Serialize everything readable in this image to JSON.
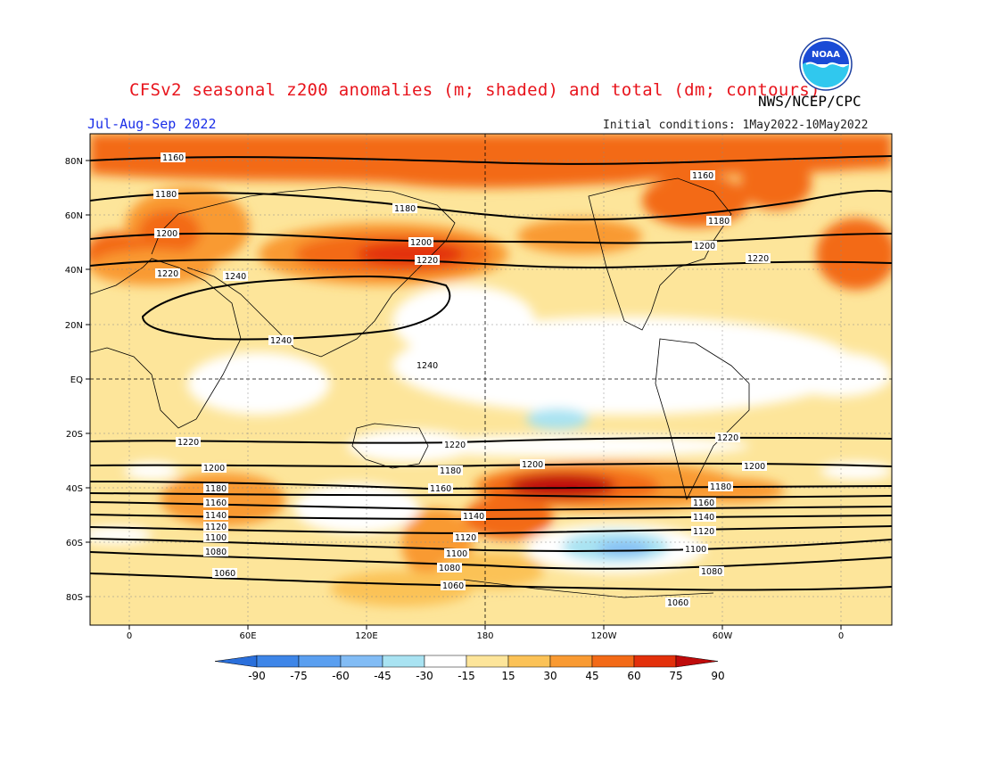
{
  "header": {
    "title": "CFSv2 seasonal z200 anomalies (m; shaded) and total (dm; contours)",
    "agency": "NWS/NCEP/CPC",
    "period": "Jul-Aug-Sep 2022",
    "initial_conditions": "Initial conditions: 1May2022-10May2022"
  },
  "logo": {
    "icon": "noaa-logo",
    "text": "NOAA"
  },
  "map": {
    "lat_ticks": [
      "80N",
      "60N",
      "40N",
      "20N",
      "EQ",
      "20S",
      "40S",
      "60S",
      "80S"
    ],
    "lon_ticks": [
      "0",
      "60E",
      "120E",
      "180",
      "120W",
      "60W",
      "0"
    ],
    "contour_labels": [
      "1060",
      "1080",
      "1100",
      "1120",
      "1140",
      "1160",
      "1180",
      "1200",
      "1220",
      "1240"
    ]
  },
  "colorbar": {
    "labels": [
      "-90",
      "-75",
      "-60",
      "-45",
      "-30",
      "-15",
      "15",
      "30",
      "45",
      "60",
      "75",
      "90"
    ],
    "colors": [
      "#2a6fdb",
      "#3e86e8",
      "#5a9ff0",
      "#82bcf5",
      "#a9e3f2",
      "#ffffff",
      "#fde59a",
      "#fbc257",
      "#f99a32",
      "#f36a17",
      "#e3300b",
      "#bf0b0b"
    ]
  }
}
